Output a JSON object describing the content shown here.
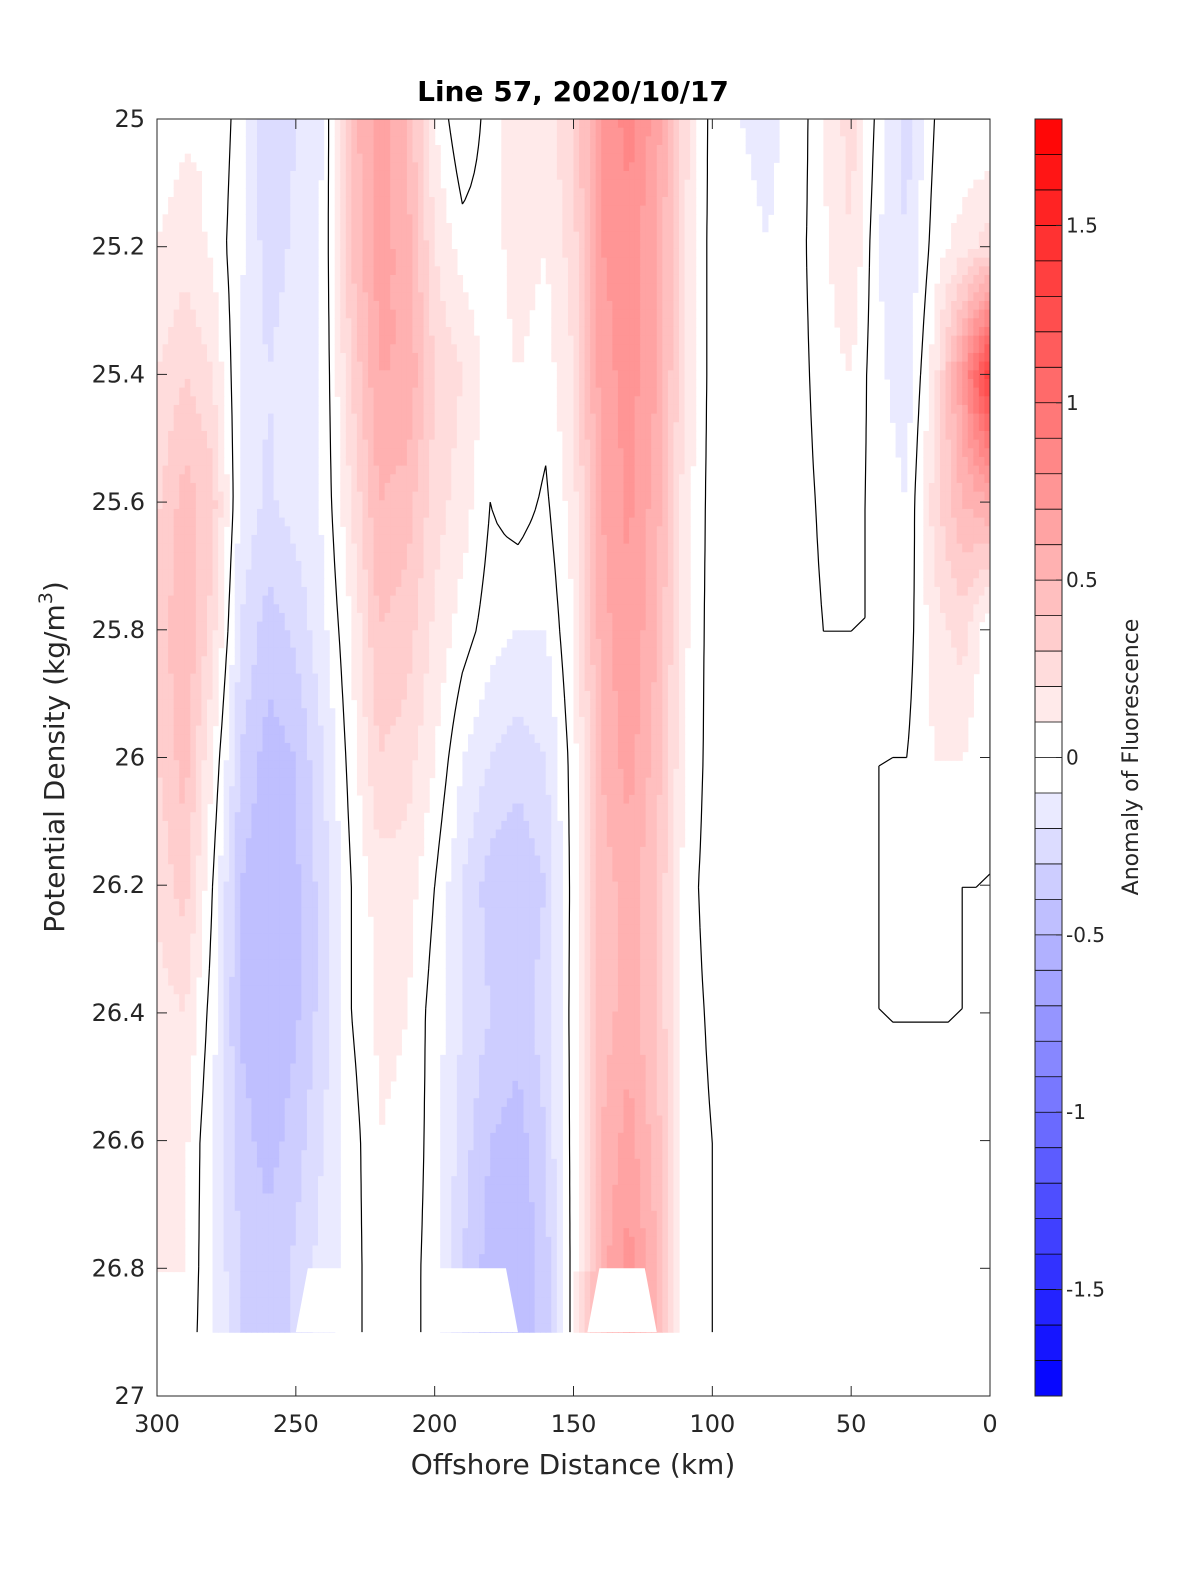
{
  "chart_data": {
    "type": "heatmap",
    "subtype": "filled-contour",
    "title": "Line 57, 2020/10/17",
    "xlabel": "Offshore Distance (km)",
    "ylabel": "Potential Density (kg/m^3)",
    "ylabel_parts": {
      "main": "Potential Density (kg/m",
      "sup": "3",
      "end": ")"
    },
    "colorbar_label": "Anomaly of Fluorescence",
    "x_reversed": true,
    "y_reversed": true,
    "xlim": [
      300,
      0
    ],
    "ylim": [
      25,
      27
    ],
    "xticks": [
      300,
      250,
      200,
      150,
      100,
      50,
      0
    ],
    "yticks": [
      25,
      25.2,
      25.4,
      25.6,
      25.8,
      26,
      26.2,
      26.4,
      26.6,
      26.8,
      27
    ],
    "xtick_labels": [
      "300",
      "250",
      "200",
      "150",
      "100",
      "50",
      "0"
    ],
    "ytick_labels": [
      "25",
      "25.2",
      "25.4",
      "25.6",
      "25.8",
      "26",
      "26.2",
      "26.4",
      "26.6",
      "26.8",
      "27"
    ],
    "clim": [
      -1.8,
      1.8
    ],
    "colorbar_ticks": [
      1.5,
      1,
      0.5,
      0,
      -0.5,
      -1,
      -1.5
    ],
    "colorbar_tick_labels": [
      "1.5",
      "1",
      "0.5",
      "0",
      "-0.5",
      "-1",
      "-1.5"
    ],
    "colorbar_levels": 36,
    "colormap": {
      "negative": "#0000ff",
      "zero": "#ffffff",
      "positive": "#ff0000"
    },
    "zero_contour_lines": true,
    "grid": false,
    "data_lower_boundary_density": 26.9,
    "missing_data_patches": [
      {
        "x_range": [
          250,
          170
        ],
        "density_top": 26.8
      },
      {
        "x_range": [
          145,
          120
        ],
        "density_top": 26.8
      }
    ],
    "columns": [
      {
        "x": 300,
        "values": [
          0.05,
          0.1,
          0.2,
          0.28,
          0.33,
          0.3,
          0.22,
          0.15,
          0.12,
          0.1,
          0.08
        ]
      },
      {
        "x": 290,
        "values": [
          0.08,
          0.15,
          0.3,
          0.45,
          0.5,
          0.45,
          0.35,
          0.2,
          0.12,
          0.1,
          0.08
        ]
      },
      {
        "x": 280,
        "values": [
          0.1,
          0.08,
          0.2,
          0.35,
          0.25,
          0.1,
          0.0,
          -0.05,
          -0.1,
          -0.1,
          -0.1
        ]
      },
      {
        "x": 270,
        "values": [
          -0.05,
          -0.08,
          -0.1,
          -0.12,
          -0.2,
          -0.3,
          -0.4,
          -0.42,
          -0.35,
          -0.3,
          -0.3
        ]
      },
      {
        "x": 260,
        "values": [
          -0.3,
          -0.25,
          -0.2,
          -0.22,
          -0.35,
          -0.45,
          -0.5,
          -0.5,
          -0.45,
          -0.35,
          -0.35
        ]
      },
      {
        "x": 250,
        "values": [
          -0.2,
          -0.18,
          -0.15,
          -0.15,
          -0.28,
          -0.4,
          -0.42,
          -0.42,
          -0.35,
          -0.28,
          -0.28
        ]
      },
      {
        "x": 240,
        "values": [
          -0.1,
          -0.08,
          -0.08,
          -0.08,
          -0.12,
          -0.2,
          -0.25,
          -0.25,
          -0.2,
          -0.15,
          -0.15
        ]
      },
      {
        "x": 230,
        "values": [
          0.45,
          0.4,
          0.3,
          0.2,
          0.1,
          0.05,
          0.0,
          0.0,
          -0.05,
          -0.05,
          -0.05
        ]
      },
      {
        "x": 220,
        "values": [
          0.65,
          0.65,
          0.6,
          0.5,
          0.4,
          0.3,
          0.15,
          0.12,
          0.1,
          0.08,
          0.08
        ]
      },
      {
        "x": 210,
        "values": [
          0.5,
          0.55,
          0.6,
          0.45,
          0.35,
          0.25,
          0.15,
          0.1,
          0.08,
          0.05,
          0.05
        ]
      },
      {
        "x": 200,
        "values": [
          0.1,
          0.2,
          0.3,
          0.25,
          0.18,
          0.1,
          0.0,
          -0.05,
          -0.05,
          -0.05,
          -0.05
        ]
      },
      {
        "x": 190,
        "values": [
          -0.1,
          0.05,
          0.2,
          0.15,
          0.05,
          -0.1,
          -0.2,
          -0.2,
          -0.25,
          -0.3,
          -0.3
        ]
      },
      {
        "x": 180,
        "values": [
          0.05,
          0.05,
          0.05,
          0.0,
          -0.05,
          -0.2,
          -0.35,
          -0.3,
          -0.4,
          -0.45,
          -0.45
        ]
      },
      {
        "x": 170,
        "values": [
          0.2,
          0.15,
          0.1,
          0.05,
          -0.1,
          -0.25,
          -0.4,
          -0.35,
          -0.45,
          -0.5,
          -0.5
        ]
      },
      {
        "x": 160,
        "values": [
          0.15,
          0.1,
          0.05,
          -0.02,
          -0.1,
          -0.2,
          -0.3,
          -0.25,
          -0.3,
          -0.35,
          -0.35
        ]
      },
      {
        "x": 150,
        "values": [
          0.3,
          0.25,
          0.2,
          0.15,
          0.1,
          0.05,
          0.05,
          0.05,
          0.05,
          0.05,
          0.05
        ]
      },
      {
        "x": 140,
        "values": [
          0.7,
          0.7,
          0.65,
          0.6,
          0.55,
          0.5,
          0.45,
          0.45,
          0.5,
          0.55,
          0.55
        ]
      },
      {
        "x": 130,
        "values": [
          0.85,
          0.75,
          0.75,
          0.72,
          0.7,
          0.65,
          0.55,
          0.55,
          0.65,
          0.75,
          0.75
        ]
      },
      {
        "x": 120,
        "values": [
          0.65,
          0.6,
          0.6,
          0.55,
          0.5,
          0.45,
          0.4,
          0.4,
          0.45,
          0.5,
          0.5
        ]
      },
      {
        "x": 110,
        "values": [
          0.25,
          0.2,
          0.2,
          0.15,
          0.12,
          0.1,
          0.05,
          0.05,
          0.05,
          0.05,
          0.05
        ]
      },
      {
        "x": 100,
        "values": [
          -0.05,
          -0.05,
          -0.05,
          -0.05,
          -0.05,
          -0.05,
          -0.05,
          -0.02,
          0.0,
          0.0,
          0.0
        ]
      },
      {
        "x": 90,
        "values": [
          -0.1,
          -0.08,
          -0.05,
          -0.05,
          -0.05,
          -0.05,
          0.0,
          0.0,
          0.0,
          0.0,
          0.0
        ]
      },
      {
        "x": 80,
        "values": [
          -0.12,
          -0.1,
          -0.1,
          -0.08,
          -0.08,
          -0.08,
          -0.05,
          0.0,
          0.0,
          0.0,
          0.0
        ]
      },
      {
        "x": 70,
        "values": [
          -0.08,
          -0.05,
          -0.05,
          -0.05,
          -0.05,
          -0.05,
          -0.08,
          -0.05,
          0.0,
          0.0,
          0.0
        ]
      },
      {
        "x": 60,
        "values": [
          0.1,
          0.08,
          0.05,
          0.02,
          0.0,
          0.0,
          0.0,
          0.0,
          0.0,
          0.0,
          0.0
        ]
      },
      {
        "x": 50,
        "values": [
          0.25,
          0.2,
          0.1,
          0.05,
          0.0,
          0.0,
          0.0,
          0.0,
          0.0,
          0.0,
          0.0
        ]
      },
      {
        "x": 40,
        "values": [
          -0.05,
          -0.1,
          -0.08,
          -0.05,
          0.0,
          0.0,
          0.0,
          0.0,
          0.0,
          0.0,
          0.0
        ]
      },
      {
        "x": 30,
        "values": [
          -0.25,
          -0.2,
          -0.15,
          -0.1,
          -0.05,
          0.0,
          0.05,
          0.0,
          0.0,
          0.0,
          0.0
        ]
      },
      {
        "x": 20,
        "values": [
          0.0,
          0.05,
          0.15,
          0.25,
          0.15,
          0.1,
          0.1,
          0.0,
          0.0,
          0.0,
          0.0
        ]
      },
      {
        "x": 10,
        "values": [
          0.0,
          0.15,
          0.7,
          0.5,
          0.25,
          0.1,
          0.0,
          0.0,
          0.0,
          0.0,
          0.0
        ]
      },
      {
        "x": 0,
        "values": [
          0.0,
          0.25,
          1.4,
          0.6,
          0.0,
          0.0,
          0.0,
          0.0,
          0.0,
          0.0,
          0.0
        ]
      }
    ],
    "column_densities": [
      25,
      25.2,
      25.4,
      25.6,
      25.8,
      26,
      26.2,
      26.4,
      26.6,
      26.8,
      26.9
    ]
  }
}
